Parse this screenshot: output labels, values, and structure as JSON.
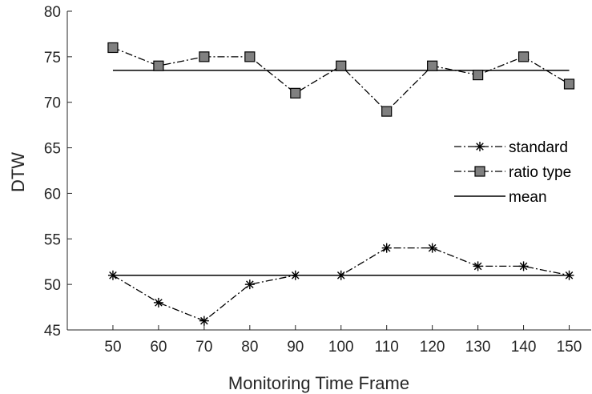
{
  "chart_data": {
    "type": "line",
    "title": "",
    "xlabel": "Monitoring Time Frame",
    "ylabel": "DTW",
    "x": [
      50,
      60,
      70,
      80,
      90,
      100,
      110,
      120,
      130,
      140,
      150
    ],
    "xticks": [
      "50",
      "60",
      "70",
      "80",
      "90",
      "100",
      "110",
      "120",
      "130",
      "140",
      "150"
    ],
    "yticks": [
      "45",
      "50",
      "55",
      "60",
      "65",
      "70",
      "75",
      "80"
    ],
    "xlim": [
      40,
      155
    ],
    "ylim": [
      45,
      80
    ],
    "grid": false,
    "legend_position": "right",
    "series": [
      {
        "name": "standard",
        "marker": "asterisk",
        "line": "dash-dot",
        "color": "#000000",
        "values": [
          51,
          48,
          46,
          50,
          51,
          51,
          54,
          54,
          52,
          52,
          51
        ]
      },
      {
        "name": "ratio type",
        "marker": "square",
        "line": "dash-dot",
        "color": "#000000",
        "marker_fill": "#808080",
        "values": [
          76,
          74,
          75,
          75,
          71,
          74,
          69,
          74,
          73,
          75,
          72
        ]
      }
    ],
    "means": [
      {
        "name": "mean",
        "value": 51
      },
      {
        "name": "mean",
        "value": 73.5
      }
    ]
  }
}
